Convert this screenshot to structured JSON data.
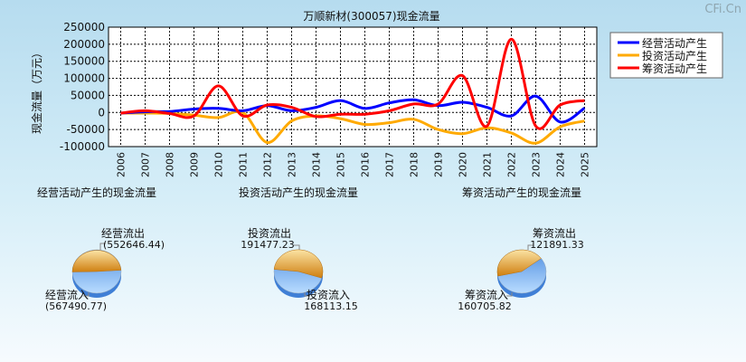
{
  "watermark": "CFi.Cn",
  "chart_data": [
    {
      "type": "line",
      "title": "万顺新材(300057)现金流量",
      "ylabel": "现金流量（万元）",
      "xlabel": "",
      "x": [
        "2006",
        "2007",
        "2008",
        "2009",
        "2010",
        "2011",
        "2012",
        "2013",
        "2014",
        "2015",
        "2016",
        "2017",
        "2018",
        "2019",
        "2020",
        "2021",
        "2022",
        "2023",
        "2024",
        "2025"
      ],
      "ylim": [
        -100000,
        250000
      ],
      "yticks": [
        250000,
        200000,
        150000,
        100000,
        50000,
        0,
        -50000,
        -100000
      ],
      "grid": true,
      "legend_position": "top-right",
      "series": [
        {
          "name": "经营活动产生",
          "color": "#0000ff",
          "values": [
            -2000,
            2000,
            3000,
            10000,
            12000,
            5000,
            20000,
            5000,
            15000,
            35000,
            12000,
            28000,
            37000,
            20000,
            30000,
            15000,
            -10000,
            48000,
            -28000,
            13000
          ]
        },
        {
          "name": "投资活动产生",
          "color": "#ffaa00",
          "values": [
            -2000,
            -2000,
            -3000,
            -8000,
            -15000,
            0,
            -88000,
            -25000,
            -10000,
            -18000,
            -35000,
            -30000,
            -20000,
            -50000,
            -62000,
            -45000,
            -60000,
            -90000,
            -42000,
            -25000
          ]
        },
        {
          "name": "筹资活动产生",
          "color": "#ff0000",
          "values": [
            -2000,
            5000,
            -3000,
            -10000,
            78000,
            -10000,
            22000,
            15000,
            -12000,
            -5000,
            -5000,
            5000,
            25000,
            25000,
            108000,
            -40000,
            215000,
            -40000,
            22000,
            35000
          ]
        }
      ]
    },
    {
      "type": "pie",
      "title": "经营活动产生的现金流量",
      "slices": [
        {
          "label": "经营流出",
          "value_label": "(552646.44)",
          "value": 552646.44,
          "color": "#f0a020"
        },
        {
          "label": "经营流入",
          "value_label": "(567490.77)",
          "value": 567490.77,
          "color": "#5aa6f0"
        }
      ]
    },
    {
      "type": "pie",
      "title": "投资活动产生的现金流量",
      "slices": [
        {
          "label": "投资流出",
          "value_label": "191477.23",
          "value": 191477.23,
          "color": "#f0a020"
        },
        {
          "label": "投资流入",
          "value_label": "168113.15",
          "value": 168113.15,
          "color": "#5aa6f0"
        }
      ]
    },
    {
      "type": "pie",
      "title": "筹资活动产生的现金流量",
      "slices": [
        {
          "label": "筹资流出",
          "value_label": "121891.33",
          "value": 121891.33,
          "color": "#f0a020"
        },
        {
          "label": "筹资流入",
          "value_label": "160705.82",
          "value": 160705.82,
          "color": "#5aa6f0"
        }
      ]
    }
  ]
}
